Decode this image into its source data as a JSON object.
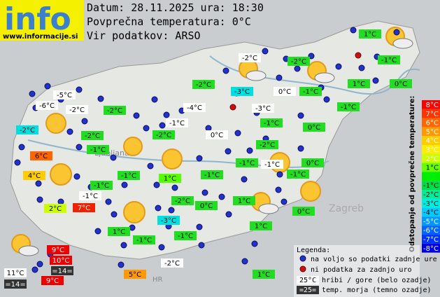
{
  "header": {
    "logo": "info",
    "site": "www.informacije.si",
    "lines": [
      "Datum: 28.11.2025 ura: 18:30",
      "Povprečna temperatura: 0°C",
      "Vir podatkov: ARSO"
    ]
  },
  "map_labels": [
    "Ljubljana",
    "Zagreb",
    "HR"
  ],
  "stations": [
    {
      "text": "1°C",
      "color": "#22dd22"
    },
    {
      "text": "-1°C",
      "color": "#22dd22"
    },
    {
      "text": "-2°C",
      "color": "#ffffff"
    },
    {
      "text": "-2°C",
      "color": "#22dd22"
    },
    {
      "text": "-2°C",
      "color": "#22dd22"
    },
    {
      "text": "-3°C",
      "color": "#00e0e0"
    },
    {
      "text": "0°C",
      "color": "#ffffff"
    },
    {
      "text": "-1°C",
      "color": "#22dd22"
    },
    {
      "text": "1°C",
      "color": "#22dd22"
    },
    {
      "text": "0°C",
      "color": "#22dd22"
    },
    {
      "text": "-5°C",
      "color": "#ffffff"
    },
    {
      "text": "-6°C",
      "color": "#ffffff"
    },
    {
      "text": "-2°C",
      "color": "#ffffff"
    },
    {
      "text": "-2°C",
      "color": "#22dd22"
    },
    {
      "text": "-4°C",
      "color": "#ffffff"
    },
    {
      "text": "-3°C",
      "color": "#ffffff"
    },
    {
      "text": "-1°C",
      "color": "#22dd22"
    },
    {
      "text": "-2°C",
      "color": "#00e0e0"
    },
    {
      "text": "-1°C",
      "color": "#22dd22"
    },
    {
      "text": "0°C",
      "color": "#22dd22"
    },
    {
      "text": "-1°C",
      "color": "#ffffff"
    },
    {
      "text": "-2°C",
      "color": "#22dd22"
    },
    {
      "text": "-2°C",
      "color": "#22dd22"
    },
    {
      "text": "0°C",
      "color": "#ffffff"
    },
    {
      "text": "-2°C",
      "color": "#22dd22"
    },
    {
      "text": "-1°C",
      "color": "#22dd22"
    },
    {
      "text": "6°C",
      "color": "#ff6600"
    },
    {
      "text": "-1°C",
      "color": "#22dd22"
    },
    {
      "text": "-1°C",
      "color": "#ffffff"
    },
    {
      "text": "0°C",
      "color": "#22dd22"
    },
    {
      "text": "-1°C",
      "color": "#22dd22"
    },
    {
      "text": "-1°C",
      "color": "#22dd22"
    },
    {
      "text": "-1°C",
      "color": "#22dd22"
    },
    {
      "text": "4°C",
      "color": "#ffcc00"
    },
    {
      "text": "1°C",
      "color": "#55ff00"
    },
    {
      "text": "-1°C",
      "color": "#22dd22"
    },
    {
      "text": "-1°C",
      "color": "#ffffff"
    },
    {
      "text": "-2°C",
      "color": "#22dd22"
    },
    {
      "text": "1°C",
      "color": "#22dd22"
    },
    {
      "text": "0°C",
      "color": "#22dd22"
    },
    {
      "text": "2°C",
      "color": "#ccff00"
    },
    {
      "text": "7°C",
      "color": "#ee2200"
    },
    {
      "text": "0°C",
      "color": "#22dd22"
    },
    {
      "text": "-3°C",
      "color": "#00e0e0"
    },
    {
      "text": "1°C",
      "color": "#22dd22"
    },
    {
      "text": "1°C",
      "color": "#22dd22"
    },
    {
      "text": "-1°C",
      "color": "#22dd22"
    },
    {
      "text": "-1°C",
      "color": "#22dd22"
    },
    {
      "text": "9°C",
      "color": "#ee0000"
    },
    {
      "text": "10°C",
      "color": "#ee0000"
    },
    {
      "text": "=14=",
      "color": "#333333"
    },
    {
      "text": "11°C",
      "color": "#ffffff"
    },
    {
      "text": "-2°C",
      "color": "#ffffff"
    },
    {
      "text": "5°C",
      "color": "#ff9900"
    },
    {
      "text": "1°C",
      "color": "#22dd22"
    },
    {
      "text": "=14=",
      "color": "#333333"
    },
    {
      "text": "9°C",
      "color": "#ee0000"
    }
  ],
  "scale": {
    "title": "Odstopanje od povprečne temperature:",
    "items": [
      {
        "label": "8°C",
        "color": "#ff0000"
      },
      {
        "label": "7°C",
        "color": "#ff3300"
      },
      {
        "label": "6°C",
        "color": "#ff6600"
      },
      {
        "label": "5°C",
        "color": "#ff9900"
      },
      {
        "label": "4°C",
        "color": "#ffcc00"
      },
      {
        "label": "3°C",
        "color": "#ffee00"
      },
      {
        "label": "2°C",
        "color": "#ccff00"
      },
      {
        "label": "1°C",
        "color": "#66ff00"
      },
      {
        "label": null,
        "color": "#00ee00"
      },
      {
        "label": "-1°C",
        "color": "#00dd44"
      },
      {
        "label": "-2°C",
        "color": "#00ee99"
      },
      {
        "label": "-3°C",
        "color": "#00eedd"
      },
      {
        "label": "-4°C",
        "color": "#00ccff"
      },
      {
        "label": "-5°C",
        "color": "#0099ff"
      },
      {
        "label": "-6°C",
        "color": "#0066ff"
      },
      {
        "label": "-7°C",
        "color": "#0033ff"
      },
      {
        "label": "-8°C",
        "color": "#0000dd"
      }
    ]
  },
  "legend": {
    "title": "Legenda:",
    "available": "na voljo so podatki zadnje ure",
    "missing": "ni podatka za zadnjo uro",
    "mountain_sample": "25°C",
    "mountain": "hribi / gore (belo ozadje)",
    "sea_sample": "=25=",
    "sea": "temp. morja (temno ozadje)"
  }
}
